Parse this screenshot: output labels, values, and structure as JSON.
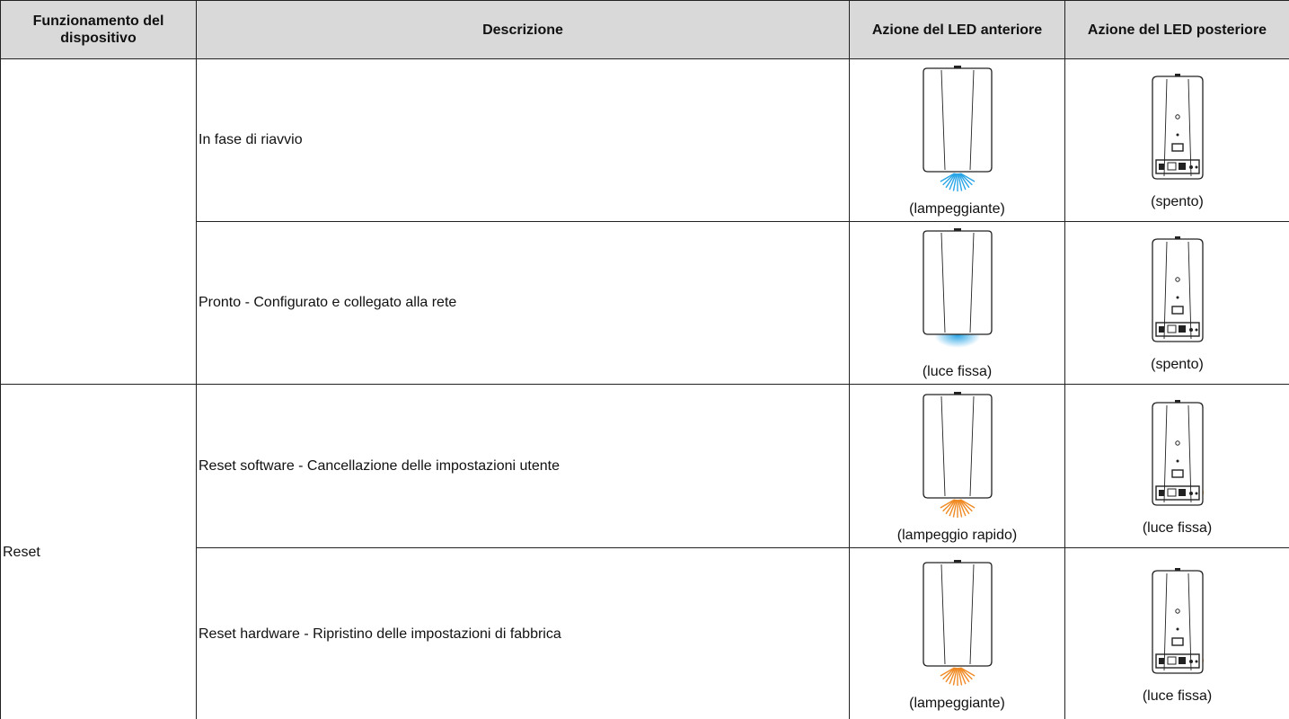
{
  "table": {
    "header": [
      "Funzionamento del dispositivo",
      "Descrizione",
      "Azione del LED anteriore",
      "Azione del LED posteriore"
    ],
    "groups": [
      {
        "rows": [
          {
            "description": "In fase di riavvio",
            "front": "(lampeggiante)",
            "rear": "(spento)"
          },
          {
            "description": "Pronto - Configurato e collegato alla rete",
            "front": "(luce fissa)",
            "rear": "(spento)"
          }
        ]
      },
      {
        "label": "Reset",
        "rows": [
          {
            "description": "Reset software - Cancellazione delle impostazioni utente",
            "front": "(lampeggio rapido)",
            "rear": "(luce fissa)"
          },
          {
            "description": "Reset hardware - Ripristino delle impostazioni di fabbrica",
            "front": "(lampeggiante)",
            "rear": "(luce fissa)"
          }
        ]
      }
    ]
  }
}
